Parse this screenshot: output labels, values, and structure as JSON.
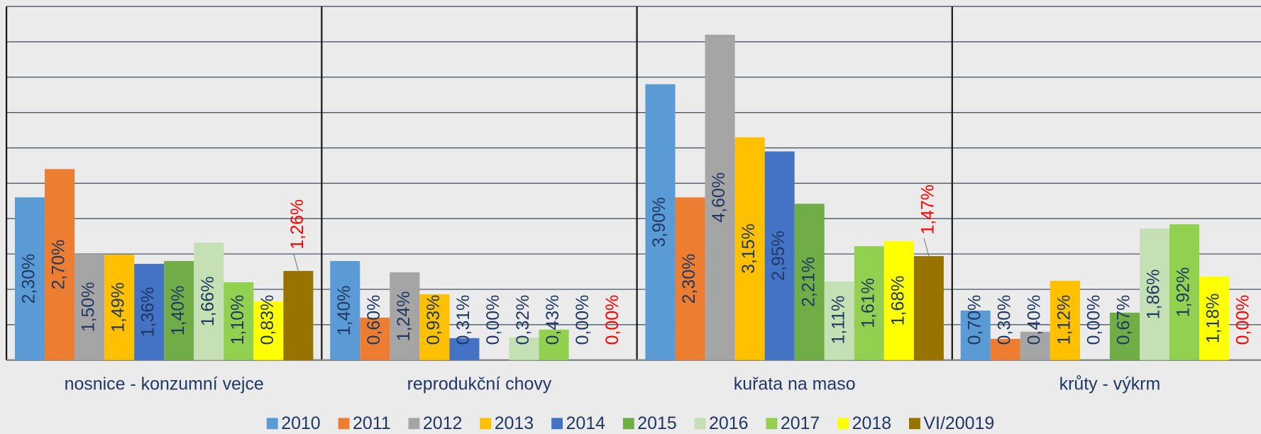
{
  "chart_data": {
    "type": "bar",
    "categories": [
      "nosnice - konzumní vejce",
      "reprodukční chovy",
      "kuřata na maso",
      "krůty - výkrm"
    ],
    "ylim": [
      0,
      5
    ],
    "yticks": [
      0,
      0.5,
      1,
      1.5,
      2,
      2.5,
      3,
      3.5,
      4,
      4.5,
      5
    ],
    "grid": true,
    "legend": "bottom",
    "series": [
      {
        "name": "2010",
        "color": "#5b9bd5",
        "label_color": "#1f3864",
        "values": [
          2.3,
          1.4,
          3.9,
          0.7
        ],
        "value_labels": [
          "2,30%",
          "1,40%",
          "3,90%",
          "0,70%"
        ]
      },
      {
        "name": "2011",
        "color": "#ed7d31",
        "label_color": "#1f3864",
        "values": [
          2.7,
          0.6,
          2.3,
          0.3
        ],
        "value_labels": [
          "2,70%",
          "0,60%",
          "2,30%",
          "0,30%"
        ]
      },
      {
        "name": "2012",
        "color": "#a5a5a5",
        "label_color": "#1f3864",
        "values": [
          1.5,
          1.24,
          4.6,
          0.4
        ],
        "value_labels": [
          "1,50%",
          "1,24%",
          "4,60%",
          "0,40%"
        ]
      },
      {
        "name": "2013",
        "color": "#ffc000",
        "label_color": "#1f3864",
        "values": [
          1.49,
          0.93,
          3.15,
          1.12
        ],
        "value_labels": [
          "1,49%",
          "0,93%",
          "3,15%",
          "1,12%"
        ]
      },
      {
        "name": "2014",
        "color": "#4472c4",
        "label_color": "#1f3864",
        "values": [
          1.36,
          0.31,
          2.95,
          0.0
        ],
        "value_labels": [
          "1,36%",
          "0,31%",
          "2,95%",
          "0,00%"
        ]
      },
      {
        "name": "2015",
        "color": "#70ad47",
        "label_color": "#1f3864",
        "values": [
          1.4,
          0.0,
          2.21,
          0.67
        ],
        "value_labels": [
          "1,40%",
          "0,00%",
          "2,21%",
          "0,67%"
        ]
      },
      {
        "name": "2016",
        "color": "#c5e0b4",
        "label_color": "#1f3864",
        "values": [
          1.66,
          0.32,
          1.11,
          1.86
        ],
        "value_labels": [
          "1,66%",
          "0,32%",
          "1,11%",
          "1,86%"
        ]
      },
      {
        "name": "2017",
        "color": "#92d050",
        "label_color": "#1f3864",
        "values": [
          1.1,
          0.43,
          1.61,
          1.92
        ],
        "value_labels": [
          "1,10%",
          "0,43%",
          "1,61%",
          "1,92%"
        ]
      },
      {
        "name": "2018",
        "color": "#ffff00",
        "label_color": "#1f3864",
        "values": [
          0.83,
          0.0,
          1.68,
          1.18
        ],
        "value_labels": [
          "0,83%",
          "0,00%",
          "1,68%",
          "1,18%"
        ]
      },
      {
        "name": "VI/20019",
        "color": "#997300",
        "label_color": "#ff0000",
        "label_outside": true,
        "values": [
          1.26,
          0.0,
          1.47,
          0.0
        ],
        "value_labels": [
          "1,26%",
          "0,00%",
          "1,47%",
          "0,00%"
        ]
      }
    ]
  }
}
